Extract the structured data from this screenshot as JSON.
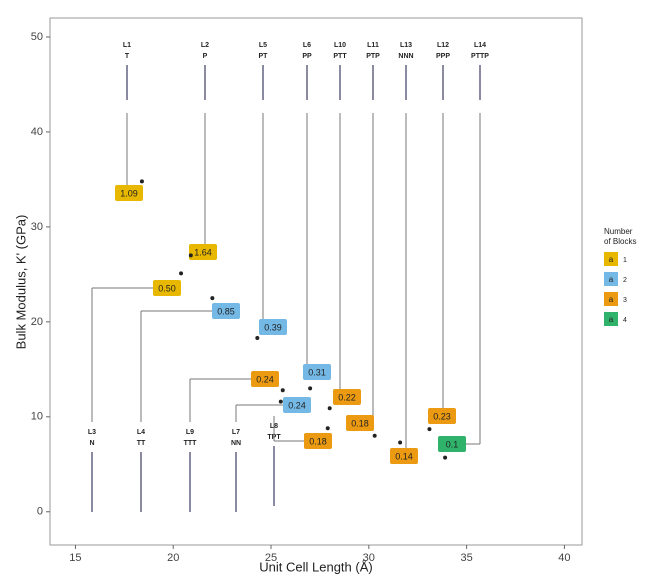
{
  "chart_data": {
    "type": "scatter",
    "x_label": "Unit Cell Length (Å)",
    "y_label": "Bulk Modulus, K' (GPa)",
    "xlim": [
      13.7,
      40.9
    ],
    "ylim": [
      -3.5,
      52
    ],
    "xticks": [
      15,
      20,
      25,
      30,
      35,
      40
    ],
    "yticks": [
      0,
      10,
      20,
      30,
      40,
      50
    ],
    "grid": false,
    "legend": {
      "title": [
        "Number",
        "of Blocks"
      ],
      "key_text": "a",
      "position": "right",
      "entries": [
        {
          "name": "1",
          "color": "#e8b800"
        },
        {
          "name": "2",
          "color": "#74b9e6"
        },
        {
          "name": "3",
          "color": "#eb9a12"
        },
        {
          "name": "4",
          "color": "#2fb36a"
        }
      ]
    },
    "points": [
      {
        "id": "L1",
        "name": "T",
        "x": 18.4,
        "y": 34.8,
        "label": "1.09",
        "blocks": 0
      },
      {
        "id": "L2",
        "name": "P",
        "x": 20.9,
        "y": 27.0,
        "label": "1.64",
        "blocks": 0
      },
      {
        "id": "L3",
        "name": "N",
        "x": 20.4,
        "y": 25.1,
        "label": "0.50",
        "blocks": 0
      },
      {
        "id": "L4",
        "name": "TT",
        "x": 22.0,
        "y": 22.5,
        "label": "0.85",
        "blocks": 1
      },
      {
        "id": "L5",
        "name": "PT",
        "x": 24.3,
        "y": 18.3,
        "label": "0.39",
        "blocks": 1
      },
      {
        "id": "L6",
        "name": "PP",
        "x": 27.0,
        "y": 13.0,
        "label": "0.31",
        "blocks": 1
      },
      {
        "id": "L7",
        "name": "NN",
        "x": 25.5,
        "y": 11.6,
        "label": "0.24",
        "blocks": 1
      },
      {
        "id": "L8",
        "name": "TPT",
        "x": 27.9,
        "y": 8.8,
        "label": "0.18",
        "blocks": 2
      },
      {
        "id": "L9",
        "name": "TTT",
        "x": 25.6,
        "y": 12.8,
        "label": "0.24",
        "blocks": 2
      },
      {
        "id": "L10",
        "name": "PTT",
        "x": 28.0,
        "y": 10.9,
        "label": "0.22",
        "blocks": 2
      },
      {
        "id": "L11",
        "name": "PTP",
        "x": 30.3,
        "y": 8.0,
        "label": "0.18",
        "blocks": 2
      },
      {
        "id": "L12",
        "name": "PPP",
        "x": 33.1,
        "y": 8.7,
        "label": "0.23",
        "blocks": 2
      },
      {
        "id": "L13",
        "name": "NNN",
        "x": 31.6,
        "y": 7.3,
        "label": "0.14",
        "blocks": 2
      },
      {
        "id": "L14",
        "name": "PTTP",
        "x": 33.9,
        "y": 5.7,
        "label": "0.1",
        "blocks": 3
      }
    ]
  }
}
